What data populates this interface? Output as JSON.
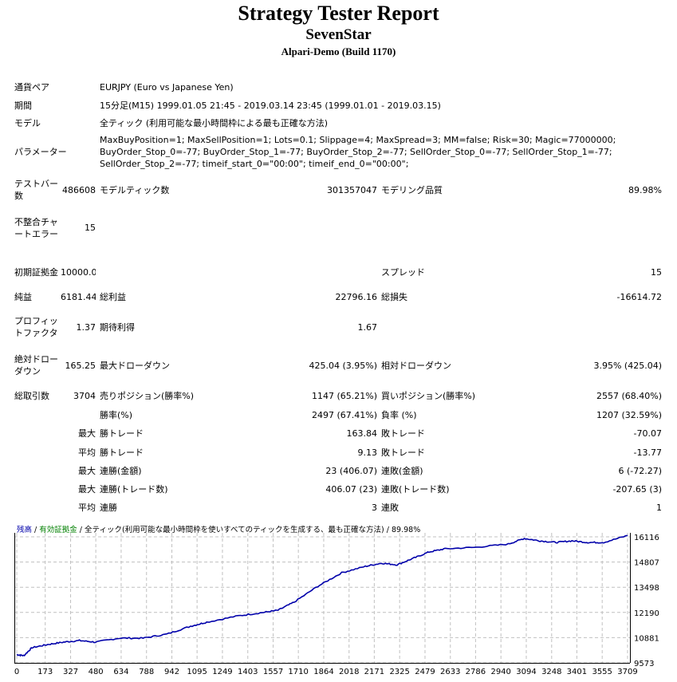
{
  "header": {
    "title": "Strategy Tester Report",
    "ea_name": "SevenStar",
    "server": "Alpari-Demo (Build 1170)"
  },
  "info": [
    {
      "label": "通貨ペア",
      "value": "EURJPY (Euro vs Japanese Yen)"
    },
    {
      "label": "期間",
      "value": "15分足(M15) 1999.01.05 21:45 - 2019.03.14 23:45 (1999.01.01 - 2019.03.15)"
    },
    {
      "label": "モデル",
      "value": "全ティック (利用可能な最小時間枠による最も正確な方法)"
    },
    {
      "label": "パラメーター",
      "value": "MaxBuyPosition=1; MaxSellPosition=1; Lots=0.1; Slippage=4; MaxSpread=3; MM=false; Risk=30; Magic=77000000; BuyOrder_Stop_0=-77; BuyOrder_Stop_1=-77; BuyOrder_Stop_2=-77; SellOrder_Stop_0=-77; SellOrder_Stop_1=-77; SellOrder_Stop_2=-77; timeif_start_0=\"00:00\"; timeif_end_0=\"00:00\";"
    }
  ],
  "stats": [
    [
      "テストバー数",
      "486608",
      "モデルティック数",
      "301357047",
      "モデリング品質",
      "89.98%"
    ],
    [
      "不整合チャートエラー",
      "15",
      "",
      "",
      "",
      ""
    ],
    [
      "",
      "",
      "",
      "",
      "",
      ""
    ],
    [
      "初期証拠金",
      "10000.00",
      "",
      "",
      "スプレッド",
      "15"
    ],
    [
      "純益",
      "6181.44",
      "総利益",
      "22796.16",
      "総損失",
      "-16614.72"
    ],
    [
      "プロフィットファクタ",
      "1.37",
      "期待利得",
      "1.67",
      "",
      ""
    ],
    [
      "絶対ドローダウン",
      "165.25",
      "最大ドローダウン",
      "425.04 (3.95%)",
      "相対ドローダウン",
      "3.95% (425.04)"
    ],
    [
      "総取引数",
      "3704",
      "売りポジション(勝率%)",
      "1147 (65.21%)",
      "買いポジション(勝率%)",
      "2557 (68.40%)"
    ],
    [
      "",
      "",
      "勝率(%)",
      "2497 (67.41%)",
      "負率 (%)",
      "1207 (32.59%)"
    ],
    [
      "",
      "最大",
      "勝トレード",
      "163.84",
      "敗トレード",
      "-70.07"
    ],
    [
      "",
      "平均",
      "勝トレード",
      "9.13",
      "敗トレード",
      "-13.77"
    ],
    [
      "",
      "最大",
      "連勝(金額)",
      "23 (406.07)",
      "連敗(金額)",
      "6 (-72.27)"
    ],
    [
      "",
      "最大",
      "連勝(トレード数)",
      "406.07 (23)",
      "連敗(トレード数)",
      "-207.65 (3)"
    ],
    [
      "",
      "平均",
      "連勝",
      "3",
      "連敗",
      "1"
    ]
  ],
  "chart_data": {
    "type": "line",
    "legend": {
      "balance": "残高",
      "sep1": " / ",
      "equity": "有効証拠金",
      "sep2": " / ",
      "model": "全ティック(利用可能な最小時間枠を使いすべてのティックを生成する、最も正確な方法)",
      "sep3": " / ",
      "quality": "89.98%"
    },
    "colors": {
      "balance": "#0000aa",
      "equity": "#008000",
      "grid": "#c0c0c0"
    },
    "x_ticks": [
      0,
      173,
      327,
      480,
      634,
      788,
      942,
      1095,
      1249,
      1403,
      1557,
      1710,
      1864,
      2018,
      2171,
      2325,
      2479,
      2633,
      2786,
      2940,
      3094,
      3248,
      3401,
      3555,
      3709
    ],
    "y_ticks": [
      16116,
      14807,
      13498,
      12190,
      10881,
      9573
    ],
    "xlim": [
      0,
      3709
    ],
    "ylim": [
      9573,
      16116
    ],
    "series": [
      {
        "name": "残高",
        "x": [
          0,
          43,
          92,
          188,
          285,
          381,
          477,
          622,
          767,
          911,
          1056,
          1153,
          1346,
          1490,
          1587,
          1683,
          1828,
          1973,
          2117,
          2214,
          2310,
          2407,
          2503,
          2600,
          2793,
          2985,
          3082,
          3178,
          3275,
          3371,
          3468,
          3564,
          3709
        ],
        "y": [
          10000,
          9946,
          10360,
          10525,
          10650,
          10732,
          10650,
          10856,
          10856,
          11063,
          11477,
          11684,
          12015,
          12181,
          12305,
          12719,
          13547,
          14251,
          14582,
          14748,
          14665,
          14996,
          15328,
          15493,
          15576,
          15742,
          16031,
          15907,
          15824,
          15907,
          15824,
          15824,
          16181
        ]
      }
    ]
  }
}
